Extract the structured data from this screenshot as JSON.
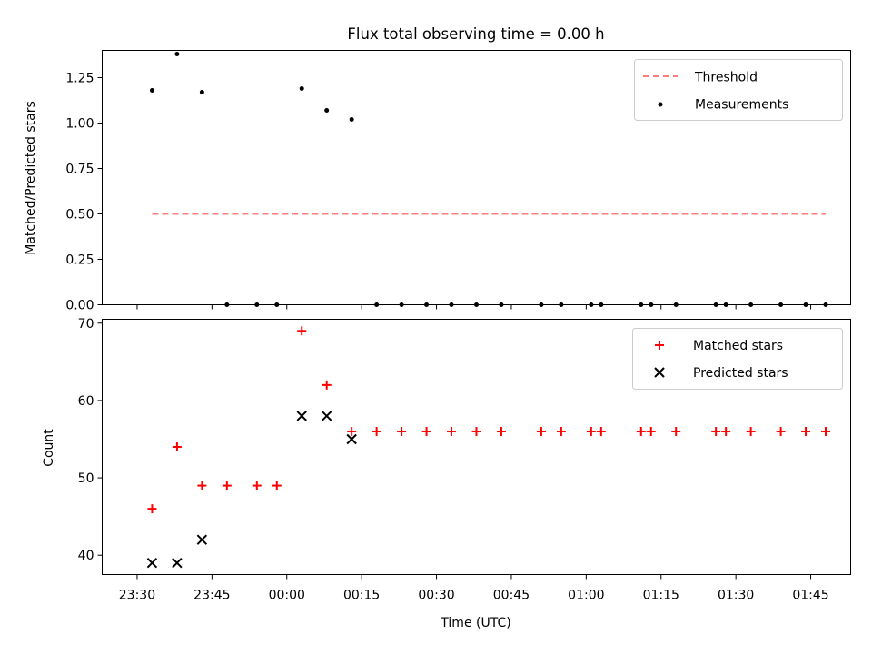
{
  "figure": {
    "title": "Flux total observing time = 0.00 h"
  },
  "chart_data": [
    {
      "type": "line+scatter",
      "panel": "top",
      "title": "Flux total observing time = 0.00 h",
      "ylabel": "Matched/Predicted stars",
      "xlim": [
        "23:23",
        "01:53"
      ],
      "ylim": [
        0,
        1.4
      ],
      "yticks": [
        0.0,
        0.25,
        0.5,
        0.75,
        1.0,
        1.25
      ],
      "ytick_labels": [
        "0.00",
        "0.25",
        "0.50",
        "0.75",
        "1.00",
        "1.25"
      ],
      "legend_position": "top-right",
      "grid": false,
      "series": [
        {
          "name": "Threshold",
          "kind": "line",
          "style": "dashed",
          "color": "#ff7f7f",
          "x": [
            "23:33",
            "01:48"
          ],
          "y": [
            0.5,
            0.5
          ]
        },
        {
          "name": "Measurements",
          "kind": "scatter",
          "marker": "dot",
          "color": "#000000",
          "x": [
            "23:33",
            "23:38",
            "23:43",
            "23:48",
            "23:54",
            "23:58",
            "00:03",
            "00:08",
            "00:13",
            "00:18",
            "00:23",
            "00:28",
            "00:33",
            "00:38",
            "00:43",
            "00:51",
            "00:55",
            "01:01",
            "01:03",
            "01:11",
            "01:13",
            "01:18",
            "01:26",
            "01:28",
            "01:33",
            "01:39",
            "01:44",
            "01:48"
          ],
          "y": [
            1.18,
            1.38,
            1.17,
            0,
            0,
            0,
            1.19,
            1.07,
            1.02,
            0,
            0,
            0,
            0,
            0,
            0,
            0,
            0,
            0,
            0,
            0,
            0,
            0,
            0,
            0,
            0,
            0,
            0,
            0
          ]
        }
      ]
    },
    {
      "type": "scatter",
      "panel": "bottom",
      "xlabel": "Time (UTC)",
      "ylabel": "Count",
      "xlim": [
        "23:23",
        "01:53"
      ],
      "ylim": [
        37.5,
        70.5
      ],
      "xtick_labels": [
        "23:30",
        "23:45",
        "00:00",
        "00:15",
        "00:30",
        "00:45",
        "01:00",
        "01:15",
        "01:30",
        "01:45"
      ],
      "yticks": [
        40,
        50,
        60,
        70
      ],
      "ytick_labels": [
        "40",
        "50",
        "60",
        "70"
      ],
      "legend_position": "top-right",
      "grid": false,
      "series": [
        {
          "name": "Matched stars",
          "marker": "plus",
          "color": "#ff0000",
          "x": [
            "23:33",
            "23:38",
            "23:43",
            "23:48",
            "23:54",
            "23:58",
            "00:03",
            "00:08",
            "00:13",
            "00:18",
            "00:23",
            "00:28",
            "00:33",
            "00:38",
            "00:43",
            "00:51",
            "00:55",
            "01:01",
            "01:03",
            "01:11",
            "01:13",
            "01:18",
            "01:26",
            "01:28",
            "01:33",
            "01:39",
            "01:44",
            "01:48"
          ],
          "y": [
            46,
            54,
            49,
            49,
            49,
            49,
            69,
            62,
            56,
            56,
            56,
            56,
            56,
            56,
            56,
            56,
            56,
            56,
            56,
            56,
            56,
            56,
            56,
            56,
            56,
            56,
            56,
            56
          ]
        },
        {
          "name": "Predicted stars",
          "marker": "x",
          "color": "#000000",
          "x": [
            "23:33",
            "23:38",
            "23:43",
            "00:03",
            "00:08",
            "00:13"
          ],
          "y": [
            39,
            39,
            42,
            58,
            58,
            55
          ]
        }
      ]
    }
  ]
}
